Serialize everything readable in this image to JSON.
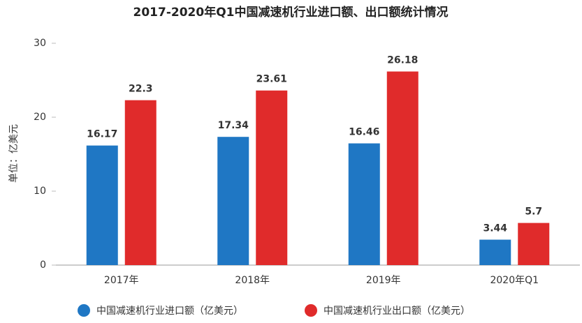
{
  "chart_data": {
    "type": "bar",
    "title": "2017-2020年Q1中国减速机行业进口额、出口额统计情况",
    "y_label": "单位：亿美元",
    "categories": [
      "2017年",
      "2018年",
      "2019年",
      "2020年Q1"
    ],
    "series": [
      {
        "name": "中国减速机行业进口额（亿美元）",
        "color": "#1f77c4",
        "values": [
          16.17,
          17.34,
          16.46,
          3.44
        ]
      },
      {
        "name": "中国减速机行业出口额（亿美元）",
        "color": "#e02b2b",
        "values": [
          22.3,
          23.61,
          26.18,
          5.7
        ]
      }
    ],
    "ylim": [
      0,
      30
    ],
    "yticks": [
      0,
      10,
      20,
      30
    ],
    "grid": false,
    "legend": "bottom"
  }
}
